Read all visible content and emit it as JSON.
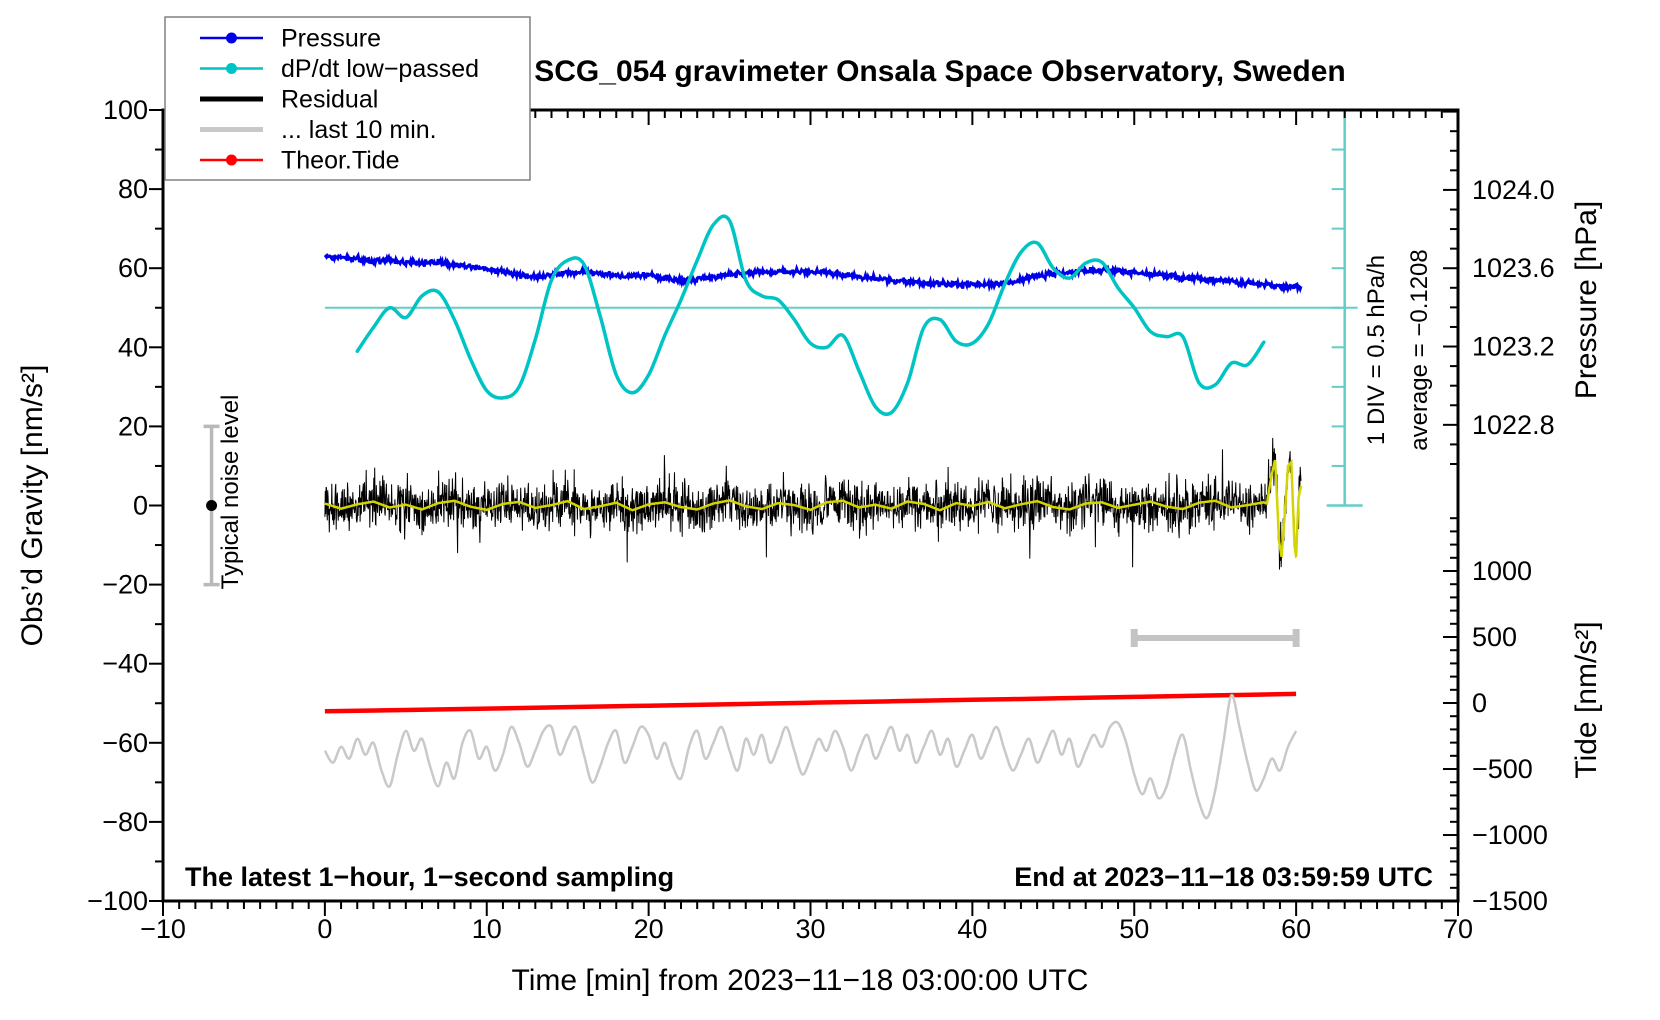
{
  "title": "SCG_054 gravimeter Onsala Space Observatory, Sweden",
  "annotations": {
    "div_scale": "1 DIV = 0.5 hPa/h",
    "average": "average = −0.1208",
    "noise_label": "Typical noise level",
    "sampling": "The latest 1−hour, 1−second sampling",
    "end_time": "End at 2023−11−18 03:59:59 UTC"
  },
  "legend": {
    "items": [
      {
        "label": "Pressure",
        "color": "#0000e8",
        "width": 2.5,
        "marker": true
      },
      {
        "label": "dP/dt low−passed",
        "color": "#00c3c3",
        "width": 2.5,
        "marker": true
      },
      {
        "label": "Residual",
        "color": "#000000",
        "width": 5,
        "marker": false
      },
      {
        "label": "... last 10 min.",
        "color": "#c9c9c9",
        "width": 5,
        "marker": false
      },
      {
        "label": "Theor.Tide",
        "color": "#ff0000",
        "width": 2.5,
        "marker": true
      }
    ]
  },
  "axes": {
    "x": {
      "label": "Time [min] from 2023−11−18 03:00:00 UTC",
      "min": -10,
      "max": 70,
      "minor_step": 1,
      "major_step": 10,
      "ticks": [
        {
          "v": -10,
          "label": "−10"
        },
        {
          "v": 0,
          "label": "0"
        },
        {
          "v": 10,
          "label": "10"
        },
        {
          "v": 20,
          "label": "20"
        },
        {
          "v": 30,
          "label": "30"
        },
        {
          "v": 40,
          "label": "40"
        },
        {
          "v": 50,
          "label": "50"
        },
        {
          "v": 60,
          "label": "60"
        },
        {
          "v": 70,
          "label": "70"
        }
      ]
    },
    "y_left": {
      "label": "Obs’d Gravity [nm/s²]",
      "min": -100,
      "max": 100,
      "minor_step": 10,
      "major_step": 20,
      "ticks": [
        {
          "v": 100,
          "label": "100"
        },
        {
          "v": 80,
          "label": "80"
        },
        {
          "v": 60,
          "label": "60"
        },
        {
          "v": 40,
          "label": "40"
        },
        {
          "v": 20,
          "label": "20"
        },
        {
          "v": 0,
          "label": "0"
        },
        {
          "v": -20,
          "label": "−20"
        },
        {
          "v": -40,
          "label": "−40"
        },
        {
          "v": -60,
          "label": "−60"
        },
        {
          "v": -80,
          "label": "−80"
        },
        {
          "v": -100,
          "label": "−100"
        }
      ]
    },
    "pressure": {
      "label": "Pressure [hPa]",
      "minor_step": 0.1,
      "major_step": 0.4,
      "minor_range": [
        1022.6,
        1024.4
      ],
      "ticks": [
        {
          "v": 1024.0,
          "label": "1024.0"
        },
        {
          "v": 1023.6,
          "label": "1023.6"
        },
        {
          "v": 1023.2,
          "label": "1023.2"
        },
        {
          "v": 1022.8,
          "label": "1022.8"
        }
      ]
    },
    "tide": {
      "label": "Tide [nm/s²]",
      "minor_step": 100,
      "major_step": 500,
      "minor_range": [
        -1500,
        1400
      ],
      "ticks": [
        {
          "v": 1000,
          "label": "1000"
        },
        {
          "v": 500,
          "label": "500"
        },
        {
          "v": 0,
          "label": "0"
        },
        {
          "v": -500,
          "label": "−500"
        },
        {
          "v": -1000,
          "label": "−1000"
        },
        {
          "v": -1500,
          "label": "−1500"
        }
      ]
    }
  },
  "colors": {
    "pressure": "#0000e8",
    "dpdt": "#00c3c3",
    "dpdt_ref": "#63cdc7",
    "residual": "#000000",
    "residual_smoothed": "#d4d400",
    "last10_expanded": "#c9c9c9",
    "last10_bar": "#c4c4c4",
    "tide": "#ff0000",
    "noise_bar": "#b9b9b9",
    "noise_label": "#999999",
    "legend_border": "#808080"
  },
  "chart_data": {
    "type": "line",
    "x_unit": "min",
    "axis_mappings": {
      "note": "all series are drawn in the left gravity frame (nm/s2)",
      "pressure": {
        "offset": 1022.388,
        "slope": 0.020202,
        "formula": "hPa = 1022.388 + 0.020202 * gravity"
      },
      "tide": {
        "zero_gravity": -49.94,
        "per_gravity": 29.96,
        "formula": "tide = (gravity + 49.94) * 29.96"
      },
      "dpdt": {
        "zero_gravity": 50,
        "per_gravity": 0.05,
        "formula": "hPa/h = (gravity - 50) * 0.05"
      }
    },
    "pressure_hPa": {
      "t_start": 0,
      "t_step": 1,
      "values": [
        1023.661,
        1023.657,
        1023.647,
        1023.637,
        1023.641,
        1023.63,
        1023.624,
        1023.628,
        1023.62,
        1023.606,
        1023.596,
        1023.584,
        1023.566,
        1023.552,
        1023.564,
        1023.578,
        1023.576,
        1023.57,
        1023.566,
        1023.56,
        1023.564,
        1023.552,
        1023.537,
        1023.543,
        1023.556,
        1023.566,
        1023.572,
        1023.578,
        1023.582,
        1023.58,
        1023.584,
        1023.576,
        1023.566,
        1023.556,
        1023.546,
        1023.537,
        1023.531,
        1023.525,
        1023.521,
        1023.517,
        1023.515,
        1023.517,
        1023.525,
        1023.537,
        1023.56,
        1023.572,
        1023.58,
        1023.588,
        1023.59,
        1023.586,
        1023.58,
        1023.572,
        1023.562,
        1023.552,
        1023.548,
        1023.54,
        1023.531,
        1023.523,
        1023.515,
        1023.509,
        1023.505
      ]
    },
    "dpdt_hPa_per_h": {
      "t_start": 2,
      "t_step": 1,
      "values": [
        -0.55,
        -0.25,
        0.0,
        -0.125,
        0.15,
        0.2,
        -0.15,
        -0.65,
        -1.05,
        -1.14,
        -1.0,
        -0.4,
        0.35,
        0.6,
        0.55,
        -0.1,
        -0.85,
        -1.075,
        -0.85,
        -0.35,
        0.1,
        0.6,
        1.05,
        1.1,
        0.35,
        0.15,
        0.1,
        -0.15,
        -0.45,
        -0.5,
        -0.35,
        -0.8,
        -1.25,
        -1.325,
        -0.95,
        -0.25,
        -0.15,
        -0.425,
        -0.45,
        -0.2,
        0.3,
        0.7,
        0.82,
        0.5,
        0.375,
        0.565,
        0.575,
        0.25,
        0.0,
        -0.3,
        -0.365,
        -0.365,
        -0.95,
        -0.975,
        -0.7,
        -0.72,
        -0.435
      ],
      "zero_ref_line": {
        "from_t": 0,
        "to_t": 63.8,
        "gravity": 50
      },
      "scale_bar": {
        "t": 63.0,
        "gravity_from": 0,
        "gravity_to": 100,
        "div_gravity": 10,
        "div_value_hPa_per_h": 0.5
      }
    },
    "theor_tide_nms2": {
      "t_start": 0,
      "t_step": 5,
      "values": [
        -63,
        -53,
        -42,
        -31,
        -20,
        -9,
        2,
        13,
        24,
        35,
        46,
        58,
        69
      ]
    },
    "residual": {
      "t_start": 0,
      "t_end": 60.3,
      "noise_sigma": 3.1,
      "spike_prob": 0.018,
      "spike_gain": 2.6,
      "smoothed_per_min": [
        0.5,
        -0.8,
        0.3,
        1.0,
        -0.5,
        0.2,
        -1.0,
        0.6,
        1.2,
        -0.3,
        -1.1,
        0.4,
        0.9,
        -0.6,
        0.1,
        1.1,
        -0.9,
        -0.2,
        0.7,
        -1.2,
        0.3,
        0.8,
        -0.4,
        -1.0,
        0.5,
        1.3,
        -0.2,
        -0.9,
        0.6,
        0.1,
        -1.1,
        0.8,
        1.2,
        -0.5,
        0.2,
        -0.8,
        1.0,
        0.4,
        -1.2,
        0.6,
        -0.1,
        0.9,
        -0.7,
        0.3,
        1.1,
        -0.4,
        -1.0,
        0.5,
        0.8,
        -0.6,
        0.2,
        1.0,
        -0.3,
        -0.9,
        0.7,
        1.2,
        -0.5,
        0.1,
        0.8
      ],
      "end_event_points": [
        [
          58.2,
          0.5
        ],
        [
          58.5,
          8
        ],
        [
          58.7,
          11.5
        ],
        [
          58.95,
          -9
        ],
        [
          59.1,
          -13
        ],
        [
          59.3,
          -2
        ],
        [
          59.5,
          10
        ],
        [
          59.7,
          11
        ],
        [
          59.9,
          -10
        ],
        [
          60.0,
          -13
        ],
        [
          60.15,
          2
        ],
        [
          60.3,
          5
        ]
      ]
    },
    "last10_expanded_gravity": {
      "t_start": 0,
      "t_step": 0.5,
      "values": [
        -62,
        -65,
        -61,
        -64,
        -59,
        -63,
        -60,
        -67,
        -71,
        -63,
        -57,
        -62,
        -59,
        -66,
        -71,
        -65,
        -69,
        -60,
        -57,
        -64,
        -61,
        -67,
        -63,
        -56,
        -60,
        -66,
        -62,
        -57,
        -56,
        -63,
        -59,
        -56,
        -63,
        -70,
        -66,
        -60,
        -57,
        -65,
        -61,
        -56,
        -58,
        -64,
        -60,
        -66,
        -69,
        -61,
        -57,
        -64,
        -60,
        -56,
        -62,
        -67,
        -59,
        -63,
        -58,
        -65,
        -61,
        -56,
        -62,
        -68,
        -64,
        -59,
        -62,
        -57,
        -61,
        -67,
        -62,
        -58,
        -64,
        -60,
        -56,
        -62,
        -58,
        -65,
        -61,
        -57,
        -63,
        -59,
        -66,
        -62,
        -58,
        -64,
        -60,
        -56,
        -62,
        -67,
        -63,
        -59,
        -65,
        -61,
        -57,
        -63,
        -59,
        -66,
        -62,
        -58,
        -61,
        -56,
        -55,
        -60,
        -68,
        -73,
        -69,
        -74,
        -71,
        -63,
        -58,
        -67,
        -75,
        -79,
        -72,
        -60,
        -48,
        -56,
        -65,
        -72,
        -69,
        -64,
        -67,
        -61,
        -57
      ]
    },
    "last10_marker_bar": {
      "t_from": 50,
      "t_to": 60,
      "gravity": -33.5
    },
    "noise_level_bar": {
      "t": -7,
      "center_gravity": 0,
      "half_range": 20
    }
  }
}
